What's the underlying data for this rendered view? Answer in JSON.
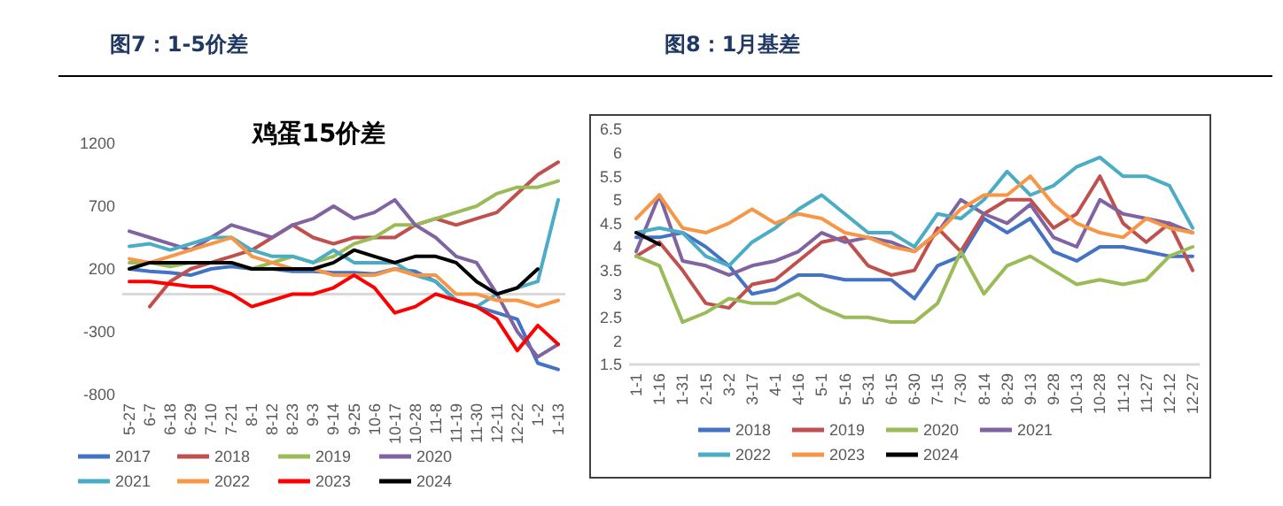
{
  "chart_data": [
    {
      "type": "line",
      "title": "图7：1-5价差",
      "subtitle": "鸡蛋15价差",
      "categories": [
        "5-27",
        "6-7",
        "6-18",
        "6-29",
        "7-10",
        "7-21",
        "8-1",
        "8-12",
        "8-23",
        "9-3",
        "9-14",
        "9-25",
        "10-6",
        "10-17",
        "10-28",
        "11-8",
        "11-19",
        "11-30",
        "12-11",
        "12-22",
        "1-2",
        "1-13"
      ],
      "ylim": [
        -800,
        1200
      ],
      "yticks": [
        -800,
        -300,
        200,
        700,
        1200
      ],
      "legend": "bottom",
      "series": [
        {
          "name": "2017",
          "color": "#4472c4",
          "values": [
            200,
            180,
            170,
            150,
            200,
            220,
            200,
            200,
            180,
            180,
            170,
            170,
            160,
            200,
            180,
            100,
            -50,
            -100,
            -150,
            -200,
            -550,
            -600
          ]
        },
        {
          "name": "2018",
          "color": "#c0504d",
          "values": [
            null,
            -100,
            100,
            200,
            250,
            300,
            350,
            450,
            550,
            450,
            400,
            450,
            450,
            450,
            550,
            600,
            550,
            600,
            650,
            800,
            950,
            1050
          ]
        },
        {
          "name": "2019",
          "color": "#9bbb59",
          "values": [
            250,
            250,
            220,
            250,
            250,
            250,
            200,
            250,
            300,
            250,
            300,
            400,
            450,
            550,
            550,
            600,
            650,
            700,
            800,
            850,
            850,
            900
          ]
        },
        {
          "name": "2020",
          "color": "#8064a2",
          "values": [
            500,
            450,
            400,
            350,
            450,
            550,
            500,
            450,
            550,
            600,
            700,
            600,
            650,
            750,
            550,
            450,
            300,
            250,
            0,
            -300,
            -500,
            -400
          ]
        },
        {
          "name": "2021",
          "color": "#4bacc6",
          "values": [
            380,
            400,
            350,
            400,
            450,
            450,
            350,
            300,
            300,
            250,
            350,
            250,
            250,
            250,
            150,
            100,
            -50,
            -100,
            0,
            50,
            100,
            750
          ]
        },
        {
          "name": "2022",
          "color": "#f79646",
          "values": [
            280,
            250,
            300,
            350,
            400,
            450,
            300,
            250,
            200,
            200,
            150,
            150,
            150,
            200,
            150,
            150,
            0,
            0,
            -50,
            -50,
            -100,
            -50
          ]
        },
        {
          "name": "2023",
          "color": "#ff0000",
          "values": [
            100,
            100,
            80,
            60,
            60,
            0,
            -100,
            -50,
            0,
            0,
            50,
            150,
            50,
            -150,
            -100,
            0,
            -50,
            -100,
            -200,
            -450,
            -250,
            -400
          ]
        },
        {
          "name": "2024",
          "color": "#000000",
          "values": [
            200,
            250,
            250,
            250,
            250,
            250,
            200,
            200,
            200,
            200,
            250,
            350,
            300,
            250,
            300,
            300,
            250,
            100,
            0,
            50,
            200,
            null
          ]
        }
      ]
    },
    {
      "type": "line",
      "title": "图8：1月基差",
      "categories": [
        "1-1",
        "1-16",
        "1-31",
        "2-15",
        "3-2",
        "3-17",
        "4-1",
        "4-16",
        "5-1",
        "5-16",
        "5-31",
        "6-15",
        "6-30",
        "7-15",
        "7-30",
        "8-14",
        "8-29",
        "9-13",
        "9-28",
        "10-13",
        "10-28",
        "11-12",
        "11-27",
        "12-12",
        "12-27"
      ],
      "ylim": [
        1.5,
        6.5
      ],
      "yticks": [
        1.5,
        2,
        2.5,
        3,
        3.5,
        4,
        4.5,
        5,
        5.5,
        6,
        6.5
      ],
      "legend": "bottom",
      "series": [
        {
          "name": "2018",
          "color": "#4472c4",
          "values": [
            4.2,
            4.2,
            4.3,
            4.0,
            3.6,
            3.0,
            3.1,
            3.4,
            3.4,
            3.3,
            3.3,
            3.3,
            2.9,
            3.6,
            3.8,
            4.6,
            4.3,
            4.6,
            3.9,
            3.7,
            4.0,
            4.0,
            3.9,
            3.8,
            3.8
          ]
        },
        {
          "name": "2019",
          "color": "#c0504d",
          "values": [
            3.8,
            4.1,
            3.5,
            2.8,
            2.7,
            3.2,
            3.3,
            3.7,
            4.1,
            4.2,
            3.6,
            3.4,
            3.5,
            4.4,
            3.9,
            4.7,
            5.0,
            5.0,
            4.4,
            4.7,
            5.5,
            4.5,
            4.1,
            4.5,
            3.5
          ]
        },
        {
          "name": "2020",
          "color": "#9bbb59",
          "values": [
            3.8,
            3.6,
            2.4,
            2.6,
            2.9,
            2.8,
            2.8,
            3.0,
            2.7,
            2.5,
            2.5,
            2.4,
            2.4,
            2.8,
            3.9,
            3.0,
            3.6,
            3.8,
            3.5,
            3.2,
            3.3,
            3.2,
            3.3,
            3.8,
            4.0
          ]
        },
        {
          "name": "2021",
          "color": "#8064a2",
          "values": [
            3.9,
            5.1,
            3.7,
            3.6,
            3.4,
            3.6,
            3.7,
            3.9,
            4.3,
            4.1,
            4.2,
            4.1,
            3.9,
            4.3,
            5.0,
            4.7,
            4.5,
            4.9,
            4.2,
            4.0,
            5.0,
            4.7,
            4.6,
            4.5,
            4.3
          ]
        },
        {
          "name": "2022",
          "color": "#4bacc6",
          "values": [
            4.3,
            4.4,
            4.3,
            3.8,
            3.6,
            4.1,
            4.4,
            4.8,
            5.1,
            4.7,
            4.3,
            4.3,
            4.0,
            4.7,
            4.6,
            5.0,
            5.6,
            5.1,
            5.3,
            5.7,
            5.9,
            5.5,
            5.5,
            5.3,
            4.4
          ]
        },
        {
          "name": "2023",
          "color": "#f79646",
          "values": [
            4.6,
            5.1,
            4.4,
            4.3,
            4.5,
            4.8,
            4.5,
            4.7,
            4.6,
            4.3,
            4.2,
            4.0,
            3.9,
            4.3,
            4.8,
            5.1,
            5.1,
            5.5,
            4.9,
            4.5,
            4.3,
            4.2,
            4.6,
            4.4,
            4.3
          ]
        },
        {
          "name": "2024",
          "color": "#000000",
          "values": [
            4.3,
            4.05,
            null,
            null,
            null,
            null,
            null,
            null,
            null,
            null,
            null,
            null,
            null,
            null,
            null,
            null,
            null,
            null,
            null,
            null,
            null,
            null,
            null,
            null,
            null
          ]
        }
      ]
    }
  ]
}
